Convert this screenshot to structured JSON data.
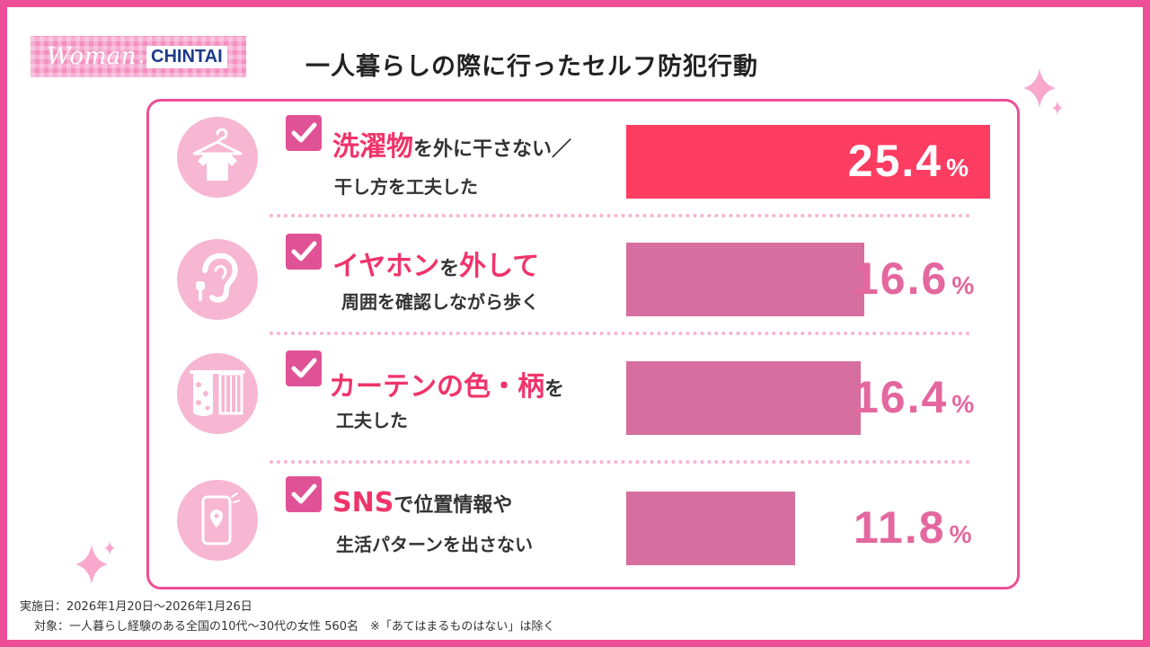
{
  "logo": {
    "woman": "Woman",
    "chintai": "CHINTAI"
  },
  "title": "一人暮らしの際に行ったセルフ防犯行動",
  "chart_data": {
    "type": "bar",
    "orientation": "horizontal",
    "title": "一人暮らしの際に行ったセルフ防犯行動",
    "xlim": [
      0,
      25.4
    ],
    "unit": "%",
    "categories": [
      "洗濯物を外に干さない／干し方を工夫した",
      "イヤホンを外して周囲を確認しながら歩く",
      "カーテンの色・柄を工夫した",
      "SNSで位置情報や生活パターンを出さない"
    ],
    "values": [
      25.4,
      16.6,
      16.4,
      11.8
    ],
    "value_labels": [
      "25.4",
      "16.6",
      "16.4",
      "11.8"
    ],
    "colors": {
      "top": "#fd3c61",
      "rest": "#d66e9f",
      "text_top": "#ffffff",
      "text_rest": "#e4679e"
    }
  },
  "rows": [
    {
      "icon": "shirt-on-hanger-icon",
      "line1_highlight": "洗濯物",
      "line1_rest": "を外に干さない／",
      "line2": "干し方を工夫した"
    },
    {
      "icon": "ear-with-earphone-icon",
      "line1_highlight": "イヤホン",
      "line1_mid": "を",
      "line1_highlight2": "外して",
      "line2": "周囲を確認しながら歩く"
    },
    {
      "icon": "curtains-icon",
      "line1_highlight": "カーテンの色・柄",
      "line1_rest": "を",
      "line2": "工夫した"
    },
    {
      "icon": "smartphone-location-icon",
      "line1_highlight": "SNS",
      "line1_rest": "で位置情報や",
      "line2": "生活パターンを出さない"
    }
  ],
  "footer": {
    "period": "実施日：2026年1月20日～2026年1月26日",
    "target": "対象：一人暮らし経験のある全国の10代～30代の女性 560名　※「あてはまるものはない」は除く"
  }
}
